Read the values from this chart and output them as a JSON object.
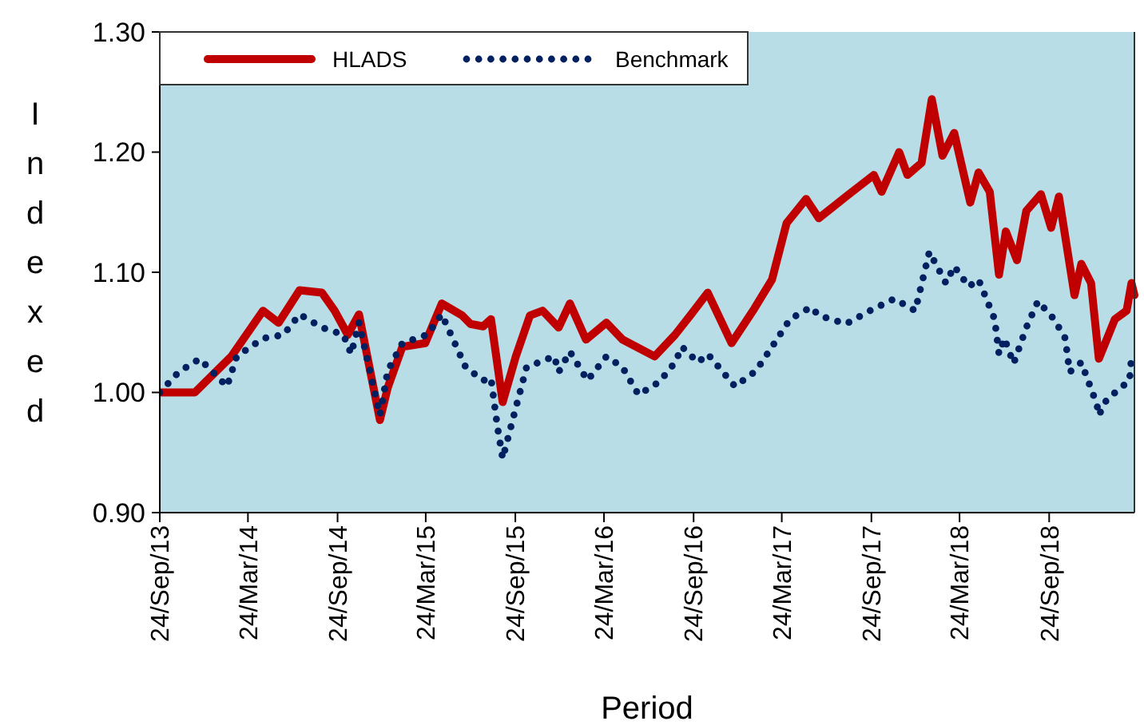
{
  "chart_data": {
    "type": "line",
    "xlabel": "Period",
    "ylabel": "Indexed",
    "legend": "top left",
    "grid": false,
    "xlim": [
      "2013-09-24",
      "2019-03-18"
    ],
    "ylim": [
      0.9,
      1.3
    ],
    "xticks": [
      {
        "value": "2013-09-24",
        "label": "24/Sep/13"
      },
      {
        "value": "2014-03-24",
        "label": "24/Mar/14"
      },
      {
        "value": "2014-09-24",
        "label": "24/Sep/14"
      },
      {
        "value": "2015-03-24",
        "label": "24/Mar/15"
      },
      {
        "value": "2015-09-24",
        "label": "24/Sep/15"
      },
      {
        "value": "2016-03-24",
        "label": "24/Mar/16"
      },
      {
        "value": "2016-09-24",
        "label": "24/Sep/16"
      },
      {
        "value": "2017-03-24",
        "label": "24/Mar/17"
      },
      {
        "value": "2017-09-24",
        "label": "24/Sep/17"
      },
      {
        "value": "2018-03-24",
        "label": "24/Mar/18"
      },
      {
        "value": "2018-09-24",
        "label": "24/Sep/18"
      }
    ],
    "yticks": [
      {
        "value": 0.9,
        "label": "0.90"
      },
      {
        "value": 1.0,
        "label": "1.00"
      },
      {
        "value": 1.1,
        "label": "1.10"
      },
      {
        "value": 1.2,
        "label": "1.20"
      },
      {
        "value": 1.3,
        "label": "1.30"
      }
    ],
    "series": [
      {
        "name": "HLADS",
        "color": "#c00000",
        "line_style": "solid",
        "x": [
          "2013-09-24",
          "2013-12-05",
          "2014-02-18",
          "2014-04-24",
          "2014-05-26",
          "2014-07-08",
          "2014-08-23",
          "2014-09-18",
          "2014-10-15",
          "2014-11-07",
          "2014-12-20",
          "2015-01-05",
          "2015-02-04",
          "2015-03-23",
          "2015-04-26",
          "2015-06-07",
          "2015-06-24",
          "2015-07-20",
          "2015-08-05",
          "2015-08-29",
          "2015-09-25",
          "2015-10-24",
          "2015-11-19",
          "2015-12-22",
          "2016-01-14",
          "2016-02-16",
          "2016-03-29",
          "2016-05-01",
          "2016-07-06",
          "2016-08-17",
          "2016-09-19",
          "2016-10-23",
          "2016-12-11",
          "2017-01-27",
          "2017-03-04",
          "2017-04-03",
          "2017-05-13",
          "2017-06-08",
          "2017-08-03",
          "2017-09-29",
          "2017-10-15",
          "2017-11-20",
          "2017-12-07",
          "2018-01-05",
          "2018-01-26",
          "2018-02-17",
          "2018-03-13",
          "2018-04-15",
          "2018-05-02",
          "2018-05-25",
          "2018-06-13",
          "2018-06-27",
          "2018-07-20",
          "2018-08-08",
          "2018-09-07",
          "2018-09-28",
          "2018-10-14",
          "2018-11-15",
          "2018-11-29",
          "2018-12-19",
          "2019-01-04",
          "2019-02-06",
          "2019-03-02",
          "2019-03-12",
          "2019-03-18"
        ],
        "values": [
          1.0,
          1.0,
          1.03,
          1.068,
          1.058,
          1.085,
          1.083,
          1.068,
          1.048,
          1.065,
          0.977,
          1.004,
          1.038,
          1.041,
          1.074,
          1.064,
          1.057,
          1.055,
          1.061,
          0.992,
          1.03,
          1.064,
          1.068,
          1.054,
          1.074,
          1.044,
          1.058,
          1.044,
          1.03,
          1.048,
          1.065,
          1.083,
          1.041,
          1.07,
          1.094,
          1.141,
          1.161,
          1.145,
          1.163,
          1.181,
          1.167,
          1.2,
          1.181,
          1.191,
          1.244,
          1.197,
          1.216,
          1.158,
          1.183,
          1.167,
          1.098,
          1.134,
          1.11,
          1.151,
          1.165,
          1.137,
          1.163,
          1.081,
          1.107,
          1.091,
          1.028,
          1.061,
          1.068,
          1.091,
          1.081
        ]
      },
      {
        "name": "Benchmark",
        "color": "#002060",
        "line_style": "dotted",
        "x": [
          "2013-09-24",
          "2013-11-02",
          "2013-12-15",
          "2014-02-09",
          "2014-03-01",
          "2014-04-24",
          "2014-06-05",
          "2014-07-08",
          "2014-08-23",
          "2014-10-06",
          "2014-10-22",
          "2014-11-07",
          "2014-12-20",
          "2015-01-05",
          "2015-02-04",
          "2015-03-27",
          "2015-04-26",
          "2015-06-14",
          "2015-07-20",
          "2015-08-05",
          "2015-08-18",
          "2015-08-29",
          "2015-09-21",
          "2015-10-17",
          "2015-12-13",
          "2015-12-22",
          "2016-01-14",
          "2016-02-19",
          "2016-03-29",
          "2016-05-01",
          "2016-06-03",
          "2016-07-16",
          "2016-08-17",
          "2016-08-31",
          "2016-10-03",
          "2016-10-23",
          "2016-12-18",
          "2017-01-30",
          "2017-03-04",
          "2017-04-10",
          "2017-05-23",
          "2017-06-08",
          "2017-08-03",
          "2017-09-21",
          "2017-11-10",
          "2017-12-23",
          "2018-01-21",
          "2018-02-24",
          "2018-03-13",
          "2018-04-12",
          "2018-05-02",
          "2018-06-04",
          "2018-06-13",
          "2018-06-24",
          "2018-07-13",
          "2018-08-08",
          "2018-09-01",
          "2018-10-04",
          "2018-10-27",
          "2018-11-05",
          "2018-11-29",
          "2018-12-31",
          "2019-01-04",
          "2019-01-20",
          "2019-03-08",
          "2019-03-12"
        ],
        "values": [
          1.0,
          1.017,
          1.028,
          1.005,
          1.03,
          1.045,
          1.048,
          1.065,
          1.054,
          1.048,
          1.032,
          1.058,
          0.981,
          1.018,
          1.041,
          1.048,
          1.065,
          1.021,
          1.01,
          1.012,
          0.972,
          0.945,
          0.981,
          1.021,
          1.03,
          1.017,
          1.034,
          1.01,
          1.03,
          1.021,
          0.998,
          1.009,
          1.025,
          1.038,
          1.025,
          1.032,
          1.005,
          1.018,
          1.038,
          1.061,
          1.071,
          1.064,
          1.057,
          1.068,
          1.078,
          1.068,
          1.117,
          1.091,
          1.105,
          1.088,
          1.094,
          1.061,
          1.032,
          1.045,
          1.024,
          1.054,
          1.076,
          1.061,
          1.045,
          1.017,
          1.025,
          0.99,
          0.981,
          0.994,
          1.01,
          1.03
        ]
      }
    ]
  }
}
